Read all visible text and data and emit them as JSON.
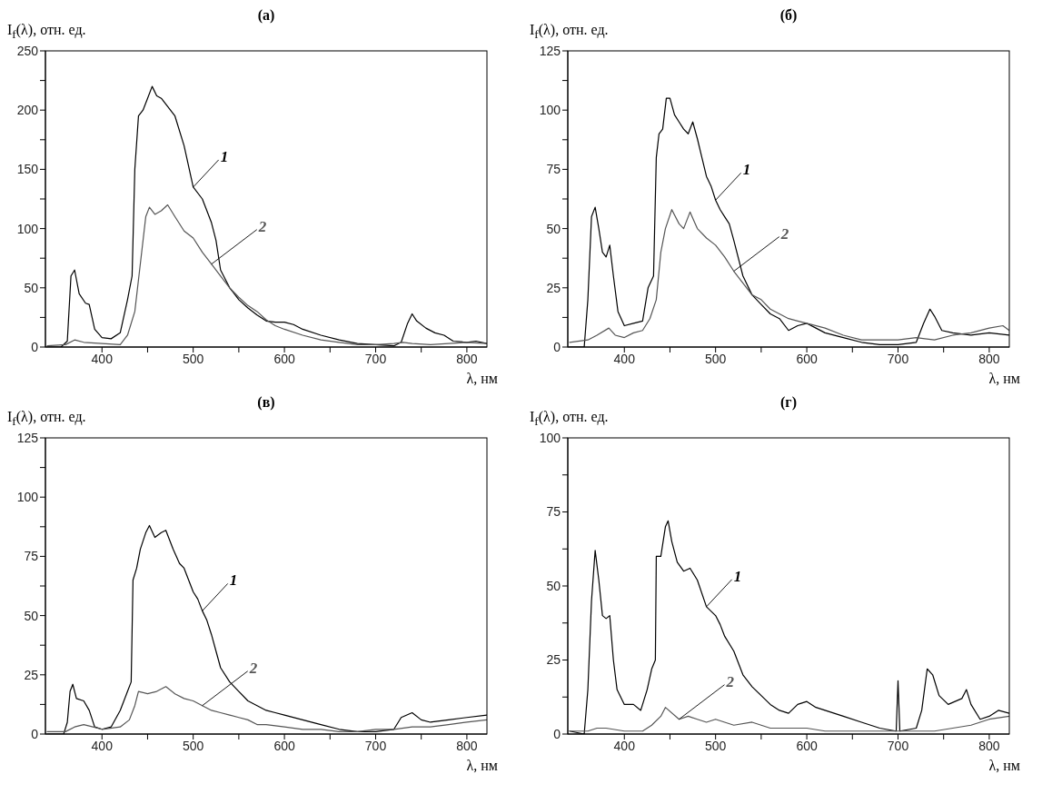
{
  "chart_data": [
    {
      "type": "line",
      "title": "(а)",
      "xlabel": "λ, нм",
      "ylabel": "I$_{f}$(λ), отн. ед.",
      "xlim": [
        338,
        822
      ],
      "ylim": [
        0,
        250
      ],
      "xticks": [
        400,
        {
          "value": 450,
          "label": null
        },
        500,
        {
          "value": 550,
          "label": null
        },
        600,
        {
          "value": 650,
          "label": null
        },
        700,
        {
          "value": 750,
          "label": null
        },
        800
      ],
      "yticks": [
        0,
        {
          "value": 25,
          "label": null
        },
        50,
        {
          "value": 75,
          "label": null
        },
        100,
        {
          "value": 125,
          "label": null
        },
        150,
        {
          "value": 175,
          "label": null
        },
        200,
        {
          "value": 225,
          "label": null
        },
        250
      ],
      "series": [
        {
          "name": "1",
          "color": "#000000",
          "x": [
            340,
            355,
            362,
            366,
            370,
            375,
            382,
            386,
            392,
            400,
            410,
            420,
            428,
            433,
            436,
            440,
            445,
            450,
            455,
            460,
            465,
            470,
            480,
            490,
            500,
            510,
            520,
            525,
            530,
            540,
            550,
            560,
            570,
            580,
            590,
            600,
            610,
            620,
            640,
            660,
            680,
            700,
            720,
            728,
            735,
            740,
            745,
            755,
            765,
            775,
            785,
            800,
            810,
            822
          ],
          "values": [
            0,
            0,
            5,
            60,
            65,
            45,
            37,
            36,
            15,
            8,
            7,
            12,
            40,
            60,
            150,
            195,
            200,
            210,
            220,
            212,
            210,
            205,
            195,
            170,
            135,
            125,
            105,
            90,
            65,
            50,
            40,
            33,
            27,
            22,
            21,
            21,
            19,
            15,
            10,
            6,
            3,
            2,
            1,
            4,
            20,
            28,
            22,
            16,
            12,
            10,
            5,
            4,
            5,
            3
          ]
        },
        {
          "name": "2",
          "color": "#555555",
          "x": [
            340,
            360,
            370,
            380,
            400,
            420,
            428,
            436,
            442,
            448,
            452,
            458,
            465,
            472,
            480,
            490,
            500,
            510,
            520,
            530,
            540,
            550,
            560,
            570,
            580,
            590,
            600,
            620,
            640,
            660,
            680,
            700,
            720,
            730,
            740,
            760,
            780,
            800,
            822
          ],
          "values": [
            1,
            2,
            6,
            4,
            3,
            2,
            10,
            30,
            70,
            110,
            118,
            112,
            115,
            120,
            110,
            98,
            92,
            80,
            70,
            60,
            50,
            42,
            35,
            30,
            23,
            18,
            15,
            10,
            6,
            4,
            2,
            2,
            3,
            4,
            3,
            2,
            3,
            4,
            3
          ]
        }
      ]
    },
    {
      "type": "line",
      "title": "(б)",
      "xlabel": "λ, нм",
      "ylabel": "I$_{f}$(λ), отн. ед.",
      "xlim": [
        338,
        822
      ],
      "ylim": [
        0,
        125
      ],
      "xticks": [
        400,
        {
          "value": 450,
          "label": null
        },
        500,
        {
          "value": 550,
          "label": null
        },
        600,
        {
          "value": 650,
          "label": null
        },
        700,
        {
          "value": 750,
          "label": null
        },
        800
      ],
      "yticks": [
        0,
        {
          "value": 12.5,
          "label": null
        },
        25,
        {
          "value": 37.5,
          "label": null
        },
        50,
        {
          "value": 62.5,
          "label": null
        },
        75,
        {
          "value": 87.5,
          "label": null
        },
        100,
        {
          "value": 112.5,
          "label": null
        },
        125
      ],
      "series": [
        {
          "name": "1",
          "color": "#000000",
          "x": [
            340,
            356,
            360,
            364,
            368,
            372,
            376,
            380,
            384,
            388,
            393,
            400,
            410,
            420,
            426,
            432,
            435,
            438,
            442,
            446,
            450,
            455,
            460,
            465,
            470,
            475,
            480,
            485,
            490,
            495,
            500,
            505,
            510,
            515,
            520,
            530,
            540,
            550,
            560,
            570,
            580,
            590,
            600,
            610,
            620,
            640,
            660,
            680,
            700,
            720,
            728,
            735,
            740,
            748,
            760,
            780,
            800,
            822
          ],
          "values": [
            0,
            0,
            20,
            55,
            59,
            50,
            40,
            38,
            43,
            30,
            15,
            9,
            10,
            11,
            25,
            30,
            80,
            90,
            92,
            105,
            105,
            98,
            95,
            92,
            90,
            95,
            88,
            80,
            72,
            68,
            62,
            58,
            55,
            52,
            45,
            30,
            22,
            18,
            14,
            12,
            7,
            9,
            10,
            8,
            6,
            4,
            2,
            1,
            1,
            2,
            10,
            16,
            13,
            7,
            6,
            5,
            6,
            5
          ]
        },
        {
          "name": "2",
          "color": "#555555",
          "x": [
            340,
            360,
            370,
            383,
            390,
            400,
            410,
            420,
            428,
            435,
            440,
            445,
            452,
            460,
            465,
            472,
            480,
            490,
            500,
            510,
            520,
            530,
            540,
            550,
            560,
            570,
            580,
            590,
            600,
            620,
            640,
            660,
            680,
            700,
            720,
            740,
            760,
            780,
            800,
            815,
            822
          ],
          "values": [
            2,
            3,
            5,
            8,
            5,
            4,
            6,
            7,
            12,
            20,
            40,
            50,
            58,
            52,
            50,
            57,
            50,
            46,
            43,
            38,
            32,
            27,
            22,
            20,
            16,
            14,
            12,
            11,
            10,
            8,
            5,
            3,
            3,
            3,
            4,
            3,
            5,
            6,
            8,
            9,
            7
          ]
        }
      ]
    },
    {
      "type": "line",
      "title": "(в)",
      "xlabel": "λ, нм",
      "ylabel": "I$_{f}$(λ), отн. ед.",
      "xlim": [
        338,
        822
      ],
      "ylim": [
        0,
        125
      ],
      "xticks": [
        400,
        {
          "value": 450,
          "label": null
        },
        500,
        {
          "value": 550,
          "label": null
        },
        600,
        {
          "value": 650,
          "label": null
        },
        700,
        {
          "value": 750,
          "label": null
        },
        800
      ],
      "yticks": [
        0,
        {
          "value": 12.5,
          "label": null
        },
        25,
        {
          "value": 37.5,
          "label": null
        },
        50,
        {
          "value": 62.5,
          "label": null
        },
        75,
        {
          "value": 87.5,
          "label": null
        },
        100,
        {
          "value": 112.5,
          "label": null
        },
        125
      ],
      "series": [
        {
          "name": "1",
          "color": "#000000",
          "x": [
            340,
            358,
            362,
            365,
            368,
            372,
            380,
            386,
            392,
            400,
            410,
            420,
            428,
            432,
            434,
            438,
            442,
            448,
            452,
            458,
            465,
            470,
            478,
            485,
            490,
            495,
            500,
            505,
            510,
            515,
            520,
            525,
            530,
            540,
            550,
            560,
            570,
            580,
            590,
            600,
            620,
            640,
            660,
            680,
            700,
            720,
            728,
            740,
            750,
            760,
            780,
            800,
            822
          ],
          "values": [
            0,
            0,
            5,
            18,
            21,
            15,
            14,
            10,
            3,
            2,
            3,
            10,
            18,
            22,
            65,
            70,
            78,
            85,
            88,
            83,
            85,
            86,
            78,
            72,
            70,
            65,
            60,
            57,
            52,
            48,
            42,
            35,
            28,
            22,
            18,
            14,
            12,
            10,
            9,
            8,
            6,
            4,
            2,
            1,
            1,
            2,
            7,
            9,
            6,
            5,
            6,
            7,
            8
          ]
        },
        {
          "name": "2",
          "color": "#555555",
          "x": [
            340,
            360,
            370,
            380,
            390,
            400,
            420,
            430,
            436,
            440,
            450,
            460,
            470,
            480,
            490,
            500,
            510,
            520,
            530,
            540,
            550,
            560,
            570,
            580,
            600,
            620,
            640,
            660,
            680,
            700,
            720,
            740,
            760,
            780,
            800,
            822
          ],
          "values": [
            1,
            1,
            3,
            4,
            3,
            2,
            3,
            6,
            12,
            18,
            17,
            18,
            20,
            17,
            15,
            14,
            12,
            10,
            9,
            8,
            7,
            6,
            4,
            4,
            3,
            2,
            2,
            1,
            1,
            2,
            2,
            3,
            3,
            4,
            5,
            6
          ]
        }
      ]
    },
    {
      "type": "line",
      "title": "(г)",
      "xlabel": "λ, нм",
      "ylabel": "I$_{f}$(λ), отн. ед.",
      "xlim": [
        338,
        822
      ],
      "ylim": [
        0,
        100
      ],
      "xticks": [
        400,
        {
          "value": 450,
          "label": null
        },
        500,
        {
          "value": 550,
          "label": null
        },
        600,
        {
          "value": 650,
          "label": null
        },
        700,
        {
          "value": 750,
          "label": null
        },
        800
      ],
      "yticks": [
        0,
        {
          "value": 12.5,
          "label": null
        },
        25,
        {
          "value": 37.5,
          "label": null
        },
        50,
        {
          "value": 62.5,
          "label": null
        },
        75,
        {
          "value": 87.5,
          "label": null
        },
        100
      ],
      "series": [
        {
          "name": "1",
          "color": "#000000",
          "x": [
            340,
            356,
            360,
            364,
            368,
            372,
            376,
            380,
            384,
            388,
            392,
            400,
            410,
            418,
            425,
            430,
            434,
            435,
            440,
            445,
            448,
            452,
            458,
            465,
            472,
            480,
            490,
            500,
            505,
            510,
            520,
            530,
            540,
            550,
            560,
            570,
            580,
            590,
            600,
            610,
            620,
            640,
            660,
            680,
            698,
            700,
            702,
            720,
            726,
            732,
            738,
            745,
            755,
            770,
            775,
            780,
            790,
            800,
            810,
            822
          ],
          "values": [
            1,
            0,
            15,
            45,
            62,
            52,
            40,
            39,
            40,
            25,
            15,
            10,
            10,
            8,
            15,
            22,
            25,
            60,
            60,
            70,
            72,
            65,
            58,
            55,
            56,
            52,
            43,
            40,
            37,
            33,
            28,
            20,
            16,
            13,
            10,
            8,
            7,
            10,
            11,
            9,
            8,
            6,
            4,
            2,
            1,
            18,
            1,
            2,
            8,
            22,
            20,
            13,
            10,
            12,
            15,
            10,
            5,
            6,
            8,
            7
          ]
        },
        {
          "name": "2",
          "color": "#555555",
          "x": [
            340,
            360,
            370,
            380,
            400,
            420,
            430,
            440,
            445,
            460,
            470,
            480,
            490,
            500,
            520,
            540,
            560,
            580,
            600,
            620,
            640,
            660,
            700,
            720,
            740,
            760,
            780,
            800,
            822
          ],
          "values": [
            1,
            1,
            2,
            2,
            1,
            1,
            3,
            6,
            9,
            5,
            6,
            5,
            4,
            5,
            3,
            4,
            2,
            2,
            2,
            1,
            1,
            1,
            1,
            1,
            1,
            2,
            3,
            5,
            6
          ]
        }
      ]
    }
  ]
}
